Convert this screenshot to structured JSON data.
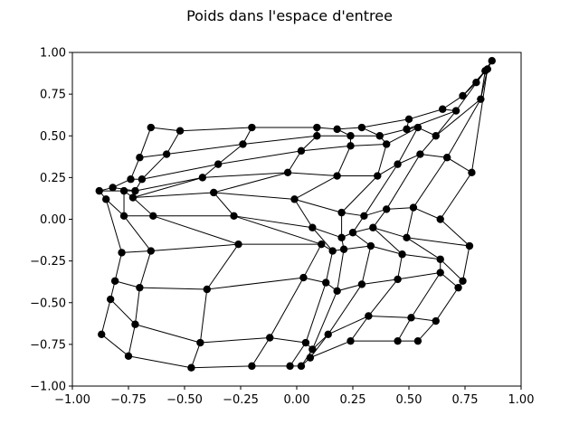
{
  "chart_data": {
    "type": "scatter",
    "title": "Poids dans l'espace d'entree",
    "xlabel": "",
    "ylabel": "",
    "xlim": [
      -1.0,
      1.0
    ],
    "ylim": [
      -1.0,
      1.0
    ],
    "x_ticks": [
      "−1.00",
      "−0.75",
      "−0.50",
      "−0.25",
      "0.00",
      "0.25",
      "0.50",
      "0.75",
      "1.00"
    ],
    "y_ticks": [
      "1.00",
      "0.75",
      "0.50",
      "0.25",
      "0.00",
      "−0.25",
      "−0.50",
      "−0.75",
      "−1.00"
    ],
    "grid": false,
    "legend": "none",
    "colors": {
      "node": "#000000",
      "edge": "#000000",
      "axes": "#000000"
    },
    "grid_rows": 10,
    "grid_cols": 10,
    "nodes": [
      [
        [
          -0.65,
          0.55
        ],
        [
          -0.52,
          0.53
        ],
        [
          -0.2,
          0.55
        ],
        [
          0.09,
          0.55
        ],
        [
          0.18,
          0.54
        ],
        [
          0.29,
          0.55
        ],
        [
          0.5,
          0.6
        ],
        [
          0.65,
          0.66
        ],
        [
          0.74,
          0.74
        ],
        [
          0.8,
          0.82
        ]
      ],
      [
        [
          -0.7,
          0.37
        ],
        [
          -0.58,
          0.39
        ],
        [
          -0.24,
          0.45
        ],
        [
          0.09,
          0.5
        ],
        [
          0.24,
          0.5
        ],
        [
          0.37,
          0.5
        ],
        [
          0.49,
          0.54
        ],
        [
          0.71,
          0.65
        ],
        [
          0.84,
          0.89
        ],
        [
          0.87,
          0.95
        ]
      ],
      [
        [
          -0.74,
          0.24
        ],
        [
          -0.69,
          0.24
        ],
        [
          -0.35,
          0.33
        ],
        [
          0.02,
          0.41
        ],
        [
          0.24,
          0.44
        ],
        [
          0.4,
          0.45
        ],
        [
          0.54,
          0.55
        ],
        [
          0.62,
          0.5
        ],
        [
          0.82,
          0.72
        ],
        [
          0.85,
          0.9
        ]
      ],
      [
        [
          -0.82,
          0.19
        ],
        [
          -0.72,
          0.17
        ],
        [
          -0.42,
          0.25
        ],
        [
          -0.04,
          0.28
        ],
        [
          0.18,
          0.26
        ],
        [
          0.36,
          0.26
        ],
        [
          0.45,
          0.33
        ],
        [
          0.55,
          0.39
        ],
        [
          0.67,
          0.37
        ],
        [
          0.78,
          0.28
        ]
      ],
      [
        [
          -0.88,
          0.17
        ],
        [
          -0.77,
          0.17
        ],
        [
          -0.73,
          0.13
        ],
        [
          -0.37,
          0.16
        ],
        [
          -0.01,
          0.12
        ],
        [
          0.2,
          0.04
        ],
        [
          0.3,
          0.02
        ],
        [
          0.4,
          0.06
        ],
        [
          0.52,
          0.07
        ],
        [
          0.64,
          0.0
        ]
      ],
      [
        [
          -0.85,
          0.12
        ],
        [
          -0.77,
          0.02
        ],
        [
          -0.64,
          0.02
        ],
        [
          -0.28,
          0.02
        ],
        [
          0.07,
          -0.05
        ],
        [
          0.2,
          -0.11
        ],
        [
          0.25,
          -0.08
        ],
        [
          0.34,
          -0.05
        ],
        [
          0.49,
          -0.11
        ],
        [
          0.77,
          -0.16
        ]
      ],
      [
        [
          -0.78,
          -0.2
        ],
        [
          -0.65,
          -0.19
        ],
        [
          -0.26,
          -0.15
        ],
        [
          0.11,
          -0.15
        ],
        [
          0.16,
          -0.19
        ],
        [
          0.21,
          -0.18
        ],
        [
          0.33,
          -0.16
        ],
        [
          0.47,
          -0.21
        ],
        [
          0.64,
          -0.24
        ],
        [
          0.74,
          -0.37
        ]
      ],
      [
        [
          -0.81,
          -0.37
        ],
        [
          -0.7,
          -0.41
        ],
        [
          -0.4,
          -0.42
        ],
        [
          0.03,
          -0.35
        ],
        [
          0.13,
          -0.38
        ],
        [
          0.18,
          -0.43
        ],
        [
          0.29,
          -0.39
        ],
        [
          0.45,
          -0.36
        ],
        [
          0.64,
          -0.32
        ],
        [
          0.72,
          -0.41
        ]
      ],
      [
        [
          -0.83,
          -0.48
        ],
        [
          -0.72,
          -0.63
        ],
        [
          -0.43,
          -0.74
        ],
        [
          -0.12,
          -0.71
        ],
        [
          0.04,
          -0.74
        ],
        [
          0.07,
          -0.78
        ],
        [
          0.14,
          -0.69
        ],
        [
          0.32,
          -0.58
        ],
        [
          0.51,
          -0.59
        ],
        [
          0.62,
          -0.61
        ]
      ],
      [
        [
          -0.87,
          -0.69
        ],
        [
          -0.75,
          -0.82
        ],
        [
          -0.47,
          -0.89
        ],
        [
          -0.2,
          -0.88
        ],
        [
          -0.03,
          -0.88
        ],
        [
          0.02,
          -0.88
        ],
        [
          0.06,
          -0.83
        ],
        [
          0.24,
          -0.73
        ],
        [
          0.45,
          -0.73
        ],
        [
          0.54,
          -0.73
        ]
      ]
    ]
  }
}
